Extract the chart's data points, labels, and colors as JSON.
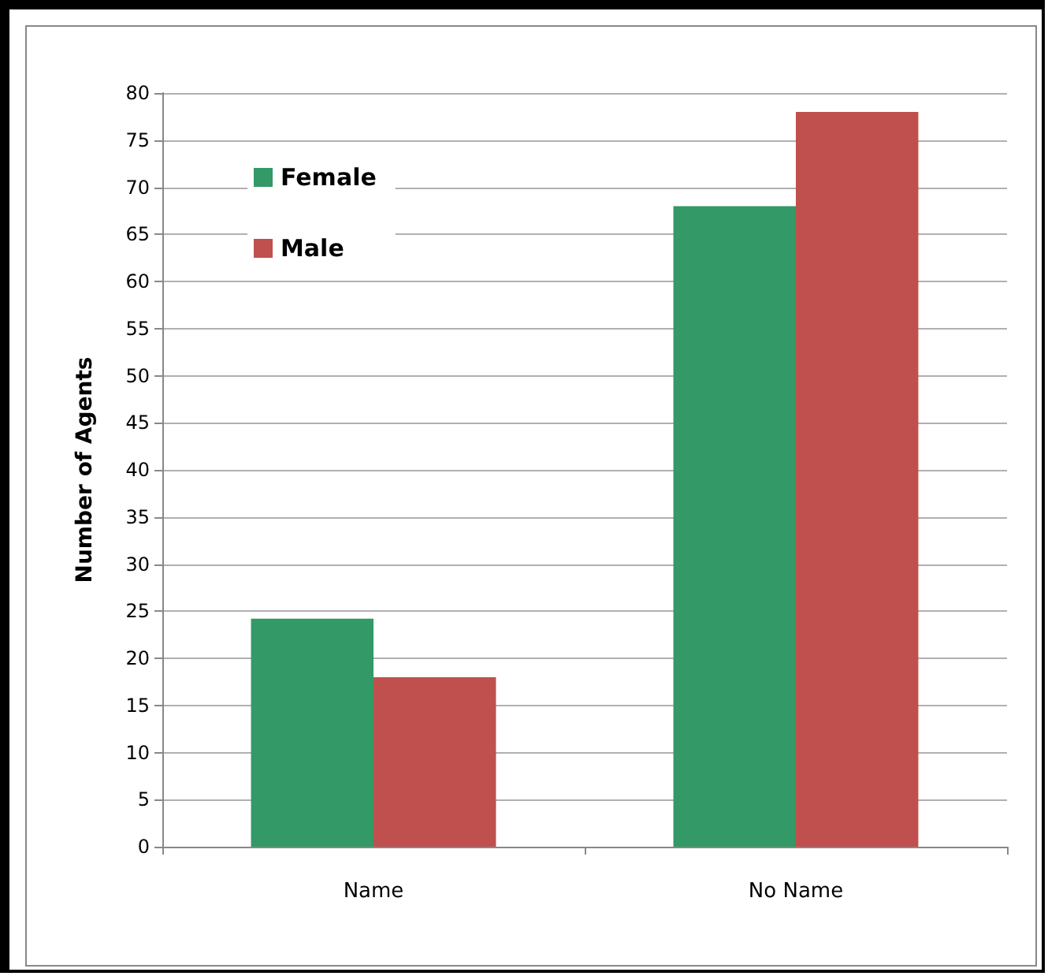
{
  "chart_data": {
    "type": "bar",
    "ylabel": "Number of Agents",
    "categories": [
      "Name",
      "No Name"
    ],
    "series": [
      {
        "name": "Female",
        "color": "#339966",
        "values": [
          24.2,
          68
        ]
      },
      {
        "name": "Male",
        "color": "#c0504d",
        "values": [
          18,
          78
        ]
      }
    ],
    "ylim": [
      0,
      80
    ],
    "yticks": [
      0,
      5,
      10,
      15,
      20,
      25,
      30,
      35,
      40,
      45,
      50,
      55,
      60,
      65,
      70,
      75,
      80
    ],
    "grid": "y",
    "legend": "top left"
  }
}
